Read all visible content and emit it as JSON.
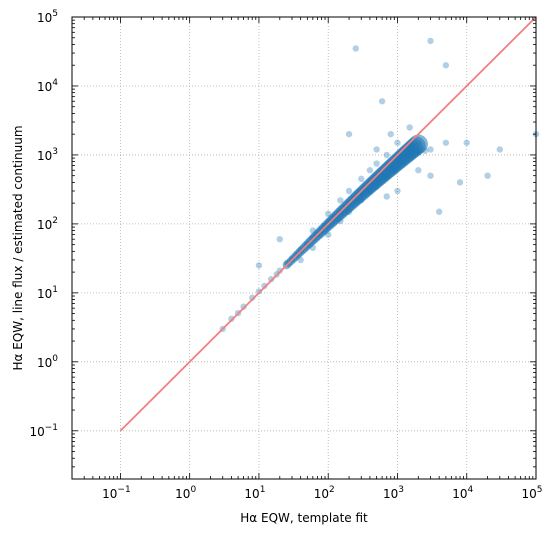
{
  "chart_data": {
    "type": "scatter",
    "title": "",
    "xlabel": "Hα EQW, template fit",
    "ylabel": "Hα EQW, line flux / estimated continuum",
    "xscale": "log",
    "yscale": "log",
    "xlim": [
      0.02,
      100000
    ],
    "ylim": [
      0.02,
      100000
    ],
    "grid": true,
    "x_tick_labels": [
      {
        "value": 0.1,
        "base": "10",
        "exp": "−1"
      },
      {
        "value": 1,
        "base": "10",
        "exp": "0"
      },
      {
        "value": 10,
        "base": "10",
        "exp": "1"
      },
      {
        "value": 100,
        "base": "10",
        "exp": "2"
      },
      {
        "value": 1000,
        "base": "10",
        "exp": "3"
      },
      {
        "value": 10000,
        "base": "10",
        "exp": "4"
      },
      {
        "value": 100000,
        "base": "10",
        "exp": "5"
      }
    ],
    "y_tick_labels": [
      {
        "value": 0.1,
        "base": "10",
        "exp": "−1"
      },
      {
        "value": 1,
        "base": "10",
        "exp": "0"
      },
      {
        "value": 10,
        "base": "10",
        "exp": "1"
      },
      {
        "value": 100,
        "base": "10",
        "exp": "2"
      },
      {
        "value": 1000,
        "base": "10",
        "exp": "3"
      },
      {
        "value": 10000,
        "base": "10",
        "exp": "4"
      },
      {
        "value": 100000,
        "base": "10",
        "exp": "5"
      }
    ],
    "scatter_color": "#1f77b4",
    "line_color": "#f08080",
    "series": [
      {
        "type": "scatter",
        "points": [
          [
            3,
            3
          ],
          [
            4,
            4.2
          ],
          [
            5,
            5.1
          ],
          [
            6,
            6.3
          ],
          [
            8,
            8.5
          ],
          [
            10,
            10.5
          ],
          [
            12,
            12.6
          ],
          [
            15,
            15.8
          ],
          [
            18,
            18.5
          ],
          [
            20,
            21
          ],
          [
            25,
            27
          ],
          [
            30,
            31
          ],
          [
            35,
            36
          ],
          [
            40,
            42
          ],
          [
            50,
            51
          ],
          [
            60,
            63
          ],
          [
            70,
            72
          ],
          [
            80,
            82
          ],
          [
            90,
            95
          ],
          [
            100,
            105
          ],
          [
            120,
            125
          ],
          [
            150,
            150
          ],
          [
            180,
            175
          ],
          [
            200,
            200
          ],
          [
            250,
            240
          ],
          [
            300,
            280
          ],
          [
            350,
            330
          ],
          [
            400,
            380
          ],
          [
            500,
            460
          ],
          [
            600,
            540
          ],
          [
            700,
            620
          ],
          [
            800,
            700
          ],
          [
            1000,
            850
          ],
          [
            1200,
            950
          ],
          [
            1500,
            1050
          ],
          [
            2000,
            1100
          ],
          [
            2500,
            1150
          ],
          [
            3000,
            1200
          ],
          [
            40,
            30
          ],
          [
            60,
            45
          ],
          [
            100,
            70
          ],
          [
            150,
            110
          ],
          [
            200,
            150
          ],
          [
            300,
            220
          ],
          [
            400,
            300
          ],
          [
            500,
            350
          ],
          [
            700,
            480
          ],
          [
            900,
            600
          ],
          [
            60,
            80
          ],
          [
            100,
            140
          ],
          [
            150,
            220
          ],
          [
            200,
            300
          ],
          [
            300,
            450
          ],
          [
            400,
            600
          ],
          [
            500,
            750
          ],
          [
            700,
            1000
          ],
          [
            1000,
            1500
          ],
          [
            1500,
            2500
          ],
          [
            800,
            2000
          ],
          [
            500,
            1200
          ],
          [
            2000,
            600
          ],
          [
            3000,
            500
          ],
          [
            5000,
            1500
          ],
          [
            8000,
            400
          ],
          [
            1000,
            300
          ],
          [
            700,
            250
          ],
          [
            20,
            60
          ],
          [
            10000,
            1500
          ],
          [
            30000,
            1200
          ],
          [
            5000,
            20000
          ],
          [
            3000,
            45000
          ],
          [
            250,
            35000
          ],
          [
            100000,
            2000
          ],
          [
            20000,
            500
          ],
          [
            4000,
            150
          ],
          [
            10,
            25
          ],
          [
            600,
            6000
          ],
          [
            200,
            2000
          ]
        ]
      },
      {
        "type": "line",
        "name": "",
        "x": [
          0.1,
          100000
        ],
        "y": [
          0.1,
          100000
        ]
      }
    ]
  }
}
